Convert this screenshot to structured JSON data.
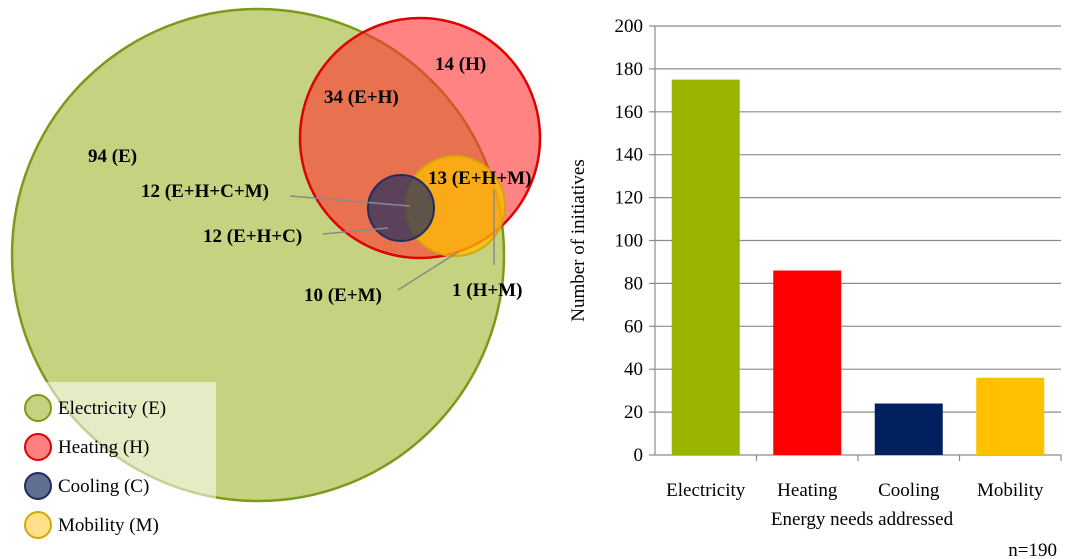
{
  "chart_data": [
    {
      "type": "venn",
      "sets": [
        {
          "name": "Electricity (E)",
          "color": "#C5D27F"
        },
        {
          "name": "Heating (H)",
          "color": "#FF8080"
        },
        {
          "name": "Cooling (C)",
          "color": "#1F2D5E"
        },
        {
          "name": "Mobility (M)",
          "color": "#FFD24D"
        }
      ],
      "regions": [
        {
          "label": "94 (E)",
          "value": 94,
          "sets": [
            "E"
          ]
        },
        {
          "label": "14 (H)",
          "value": 14,
          "sets": [
            "H"
          ]
        },
        {
          "label": "34 (E+H)",
          "value": 34,
          "sets": [
            "E",
            "H"
          ]
        },
        {
          "label": "13 (E+H+M)",
          "value": 13,
          "sets": [
            "E",
            "H",
            "M"
          ]
        },
        {
          "label": "12 (E+H+C+M)",
          "value": 12,
          "sets": [
            "E",
            "H",
            "C",
            "M"
          ]
        },
        {
          "label": "12 (E+H+C)",
          "value": 12,
          "sets": [
            "E",
            "H",
            "C"
          ]
        },
        {
          "label": "10 (E+M)",
          "value": 10,
          "sets": [
            "E",
            "M"
          ]
        },
        {
          "label": "1 (H+M)",
          "value": 1,
          "sets": [
            "H",
            "M"
          ]
        }
      ],
      "legend_placement": "bottom-left"
    },
    {
      "type": "bar",
      "categories": [
        "Electricity",
        "Heating",
        "Cooling",
        "Mobility"
      ],
      "values": [
        175,
        86,
        24,
        36
      ],
      "colors": [
        "#99B300",
        "#FF0000",
        "#002060",
        "#FFC000"
      ],
      "xlabel": "Energy needs addressed",
      "ylabel": "Number of initiatives",
      "ylim": [
        0,
        200
      ],
      "yticks": [
        0,
        20,
        40,
        60,
        80,
        100,
        120,
        140,
        160,
        180,
        200
      ],
      "grid": true,
      "note": "n=190"
    }
  ]
}
